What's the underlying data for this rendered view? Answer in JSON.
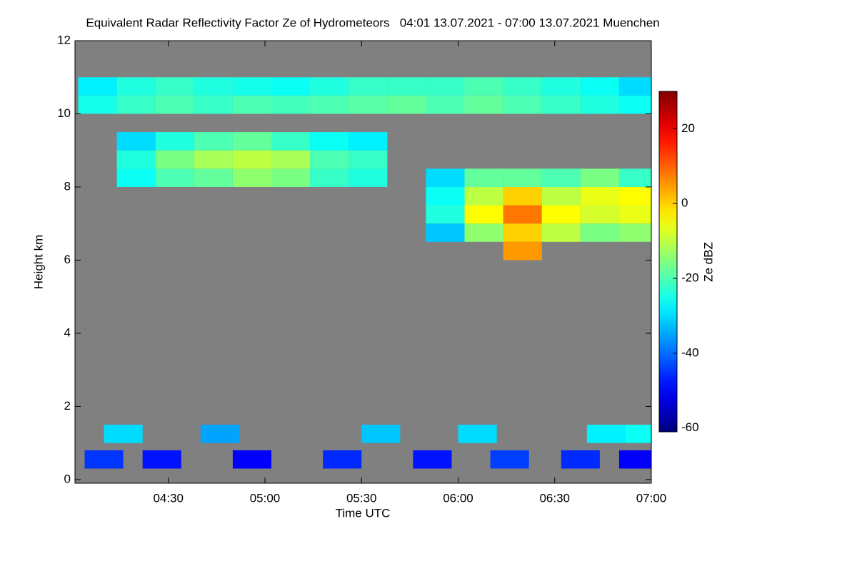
{
  "chart_data": {
    "type": "heatmap",
    "title": "Equivalent Radar Reflectivity Factor Ze of Hydrometeors   04:01 13.07.2021 - 07:00 13.07.2021 Muenchen",
    "x_label": "Time UTC",
    "y_label": "Height km",
    "colorbar_label": "Ze dBZ",
    "xlim": [
      241,
      420
    ],
    "xticks": [
      {
        "value": 270,
        "label": "04:30"
      },
      {
        "value": 300,
        "label": "05:00"
      },
      {
        "value": 330,
        "label": "05:30"
      },
      {
        "value": 360,
        "label": "06:00"
      },
      {
        "value": 390,
        "label": "06:30"
      },
      {
        "value": 420,
        "label": "07:00"
      }
    ],
    "ylim": [
      -0.1,
      12
    ],
    "yticks": [
      0,
      2,
      4,
      6,
      8,
      10,
      12
    ],
    "clim": [
      -61,
      30
    ],
    "cticks": [
      -60,
      -40,
      -20,
      0,
      20
    ],
    "colormap": "jet",
    "background": "#808080",
    "x": [
      242,
      254,
      266,
      278,
      290,
      302,
      314,
      326,
      338,
      350,
      362,
      374,
      386,
      398,
      410,
      242,
      254,
      266,
      278,
      290,
      302,
      314,
      326,
      338,
      350,
      362,
      374,
      386,
      398,
      410,
      254,
      266,
      278,
      290,
      302,
      314,
      326,
      254,
      266,
      278,
      290,
      302,
      314,
      326,
      254,
      266,
      278,
      290,
      302,
      314,
      326,
      350,
      362,
      374,
      386,
      398,
      410,
      350,
      362,
      374,
      386,
      398,
      410,
      350,
      362,
      374,
      386,
      398,
      410,
      350,
      362,
      374,
      386,
      398,
      410,
      374,
      244,
      262,
      290,
      318,
      346,
      370,
      392,
      410,
      250,
      280,
      330,
      360,
      400,
      412
    ],
    "y": [
      10,
      10,
      10,
      10,
      10,
      10,
      10,
      10,
      10,
      10,
      10,
      10,
      10,
      10,
      10,
      10.5,
      10.5,
      10.5,
      10.5,
      10.5,
      10.5,
      10.5,
      10.5,
      10.5,
      10.5,
      10.5,
      10.5,
      10.5,
      10.5,
      10.5,
      8,
      8,
      8,
      8,
      8,
      8,
      8,
      8.5,
      8.5,
      8.5,
      8.5,
      8.5,
      8.5,
      8.5,
      9,
      9,
      9,
      9,
      9,
      9,
      9,
      6.5,
      6.5,
      6.5,
      6.5,
      6.5,
      6.5,
      7,
      7,
      7,
      7,
      7,
      7,
      7.5,
      7.5,
      7.5,
      7.5,
      7.5,
      7.5,
      8,
      8,
      8,
      8,
      8,
      8,
      6,
      0.3,
      0.3,
      0.3,
      0.3,
      0.3,
      0.3,
      0.3,
      0.3,
      1,
      1,
      1,
      1,
      1,
      1
    ],
    "values": [
      -25,
      -22,
      -20,
      -22,
      -20,
      -21,
      -20,
      -19,
      -18,
      -20,
      -18,
      -20,
      -22,
      -24,
      -26,
      -28,
      -24,
      -22,
      -24,
      -25,
      -26,
      -24,
      -22,
      -22,
      -22,
      -20,
      -22,
      -24,
      -26,
      -30,
      -26,
      -20,
      -18,
      -14,
      -16,
      -22,
      -24,
      -24,
      -16,
      -12,
      -10,
      -12,
      -20,
      -22,
      -30,
      -24,
      -20,
      -18,
      -22,
      -26,
      -28,
      -32,
      -14,
      0,
      -10,
      -16,
      -14,
      -24,
      -4,
      8,
      -4,
      -8,
      -6,
      -26,
      -10,
      0,
      -10,
      -6,
      -4,
      -30,
      -18,
      -18,
      -20,
      -16,
      -22,
      5,
      -45,
      -48,
      -50,
      -46,
      -48,
      -44,
      -46,
      -50,
      -30,
      -35,
      -32,
      -30,
      -28,
      -26
    ]
  }
}
